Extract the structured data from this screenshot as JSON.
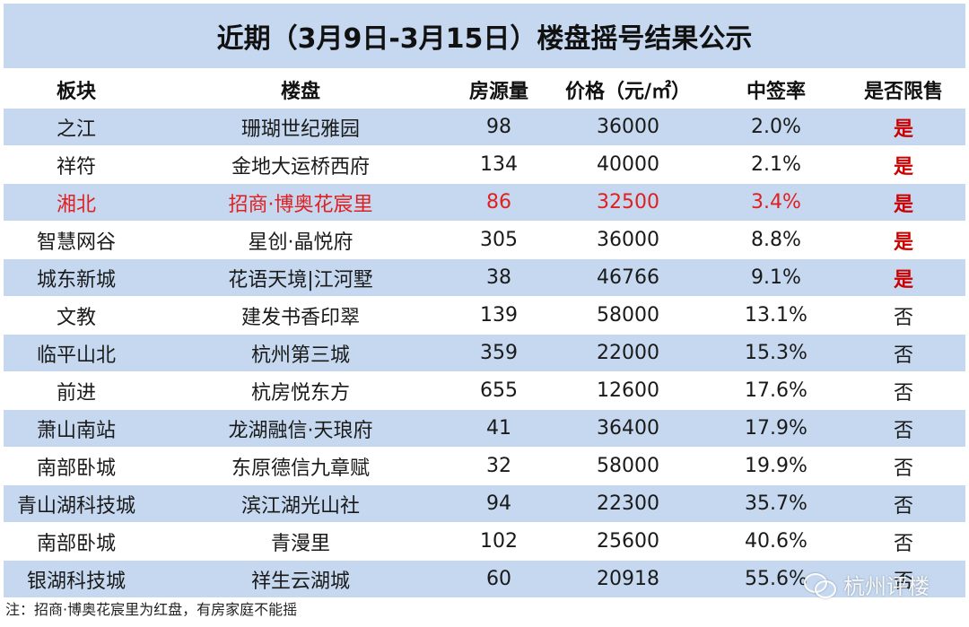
{
  "title": "近期（3月9日-3月15日）楼盘摇号结果公示",
  "columns": [
    "板块",
    "楼盘",
    "房源量",
    "价格（元/㎡）",
    "中签率",
    "是否限售"
  ],
  "rows": [
    {
      "area": "之江",
      "project": "珊瑚世纪雅园",
      "units": "98",
      "price": "36000",
      "rate": "2.0%",
      "restricted": "是"
    },
    {
      "area": "祥符",
      "project": "金地大运桥西府",
      "units": "134",
      "price": "40000",
      "rate": "2.1%",
      "restricted": "是"
    },
    {
      "area": "湘北",
      "project": "招商·博奥花宸里",
      "units": "86",
      "price": "32500",
      "rate": "3.4%",
      "restricted": "是"
    },
    {
      "area": "智慧网谷",
      "project": "星创·晶悦府",
      "units": "305",
      "price": "36000",
      "rate": "8.8%",
      "restricted": "是"
    },
    {
      "area": "城东新城",
      "project": "花语天境|江河墅",
      "units": "38",
      "price": "46766",
      "rate": "9.1%",
      "restricted": "是"
    },
    {
      "area": "文教",
      "project": "建发书香印翠",
      "units": "139",
      "price": "58000",
      "rate": "13.1%",
      "restricted": "否"
    },
    {
      "area": "临平山北",
      "project": "杭州第三城",
      "units": "359",
      "price": "22000",
      "rate": "15.3%",
      "restricted": "否"
    },
    {
      "area": "前进",
      "project": "杭房悦东方",
      "units": "655",
      "price": "12600",
      "rate": "17.6%",
      "restricted": "否"
    },
    {
      "area": "萧山南站",
      "project": "龙湖融信·天琅府",
      "units": "41",
      "price": "36400",
      "rate": "17.9%",
      "restricted": "否"
    },
    {
      "area": "南部卧城",
      "project": "东原德信九章赋",
      "units": "32",
      "price": "58000",
      "rate": "19.9%",
      "restricted": "否"
    },
    {
      "area": "青山湖科技城",
      "project": "滨江湖光山社",
      "units": "94",
      "price": "22300",
      "rate": "35.7%",
      "restricted": "否"
    },
    {
      "area": "南部卧城",
      "project": "青漫里",
      "units": "102",
      "price": "25600",
      "rate": "40.6%",
      "restricted": "否"
    },
    {
      "area": "银湖科技城",
      "project": "祥生云湖城",
      "units": "60",
      "price": "20918",
      "rate": "55.6%",
      "restricted": "否"
    }
  ],
  "highlight_row_index": 2,
  "note": "注：招商·博奥花宸里为红盘，有房家庭不能摇",
  "watermark": "杭州评楼",
  "colors": {
    "band": "#c5d8ef",
    "red": "#e02020",
    "yes": "#cc0000"
  }
}
